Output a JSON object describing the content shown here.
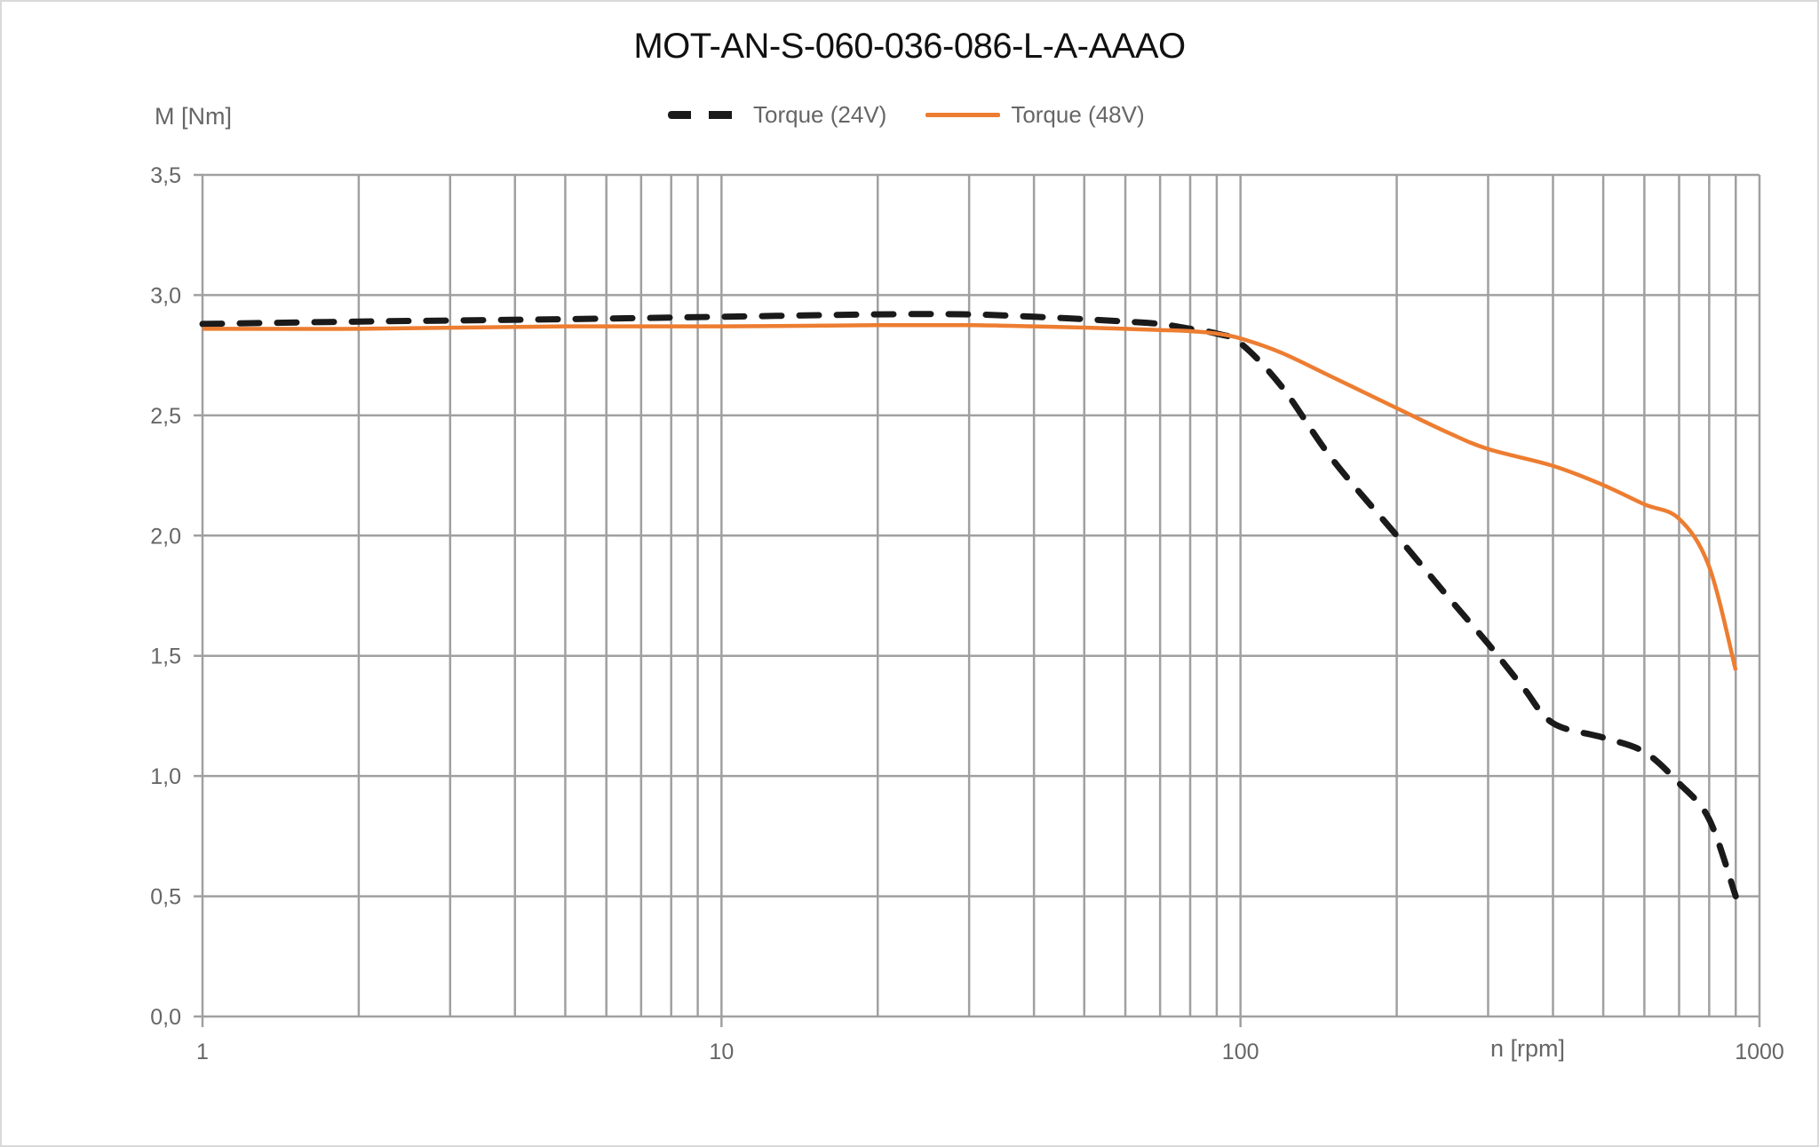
{
  "chart_data": {
    "type": "line",
    "title": "MOT-AN-S-060-036-086-L-A-AAAO",
    "xlabel": "n [rpm]",
    "ylabel": "M [Nm]",
    "xscale": "log",
    "xlim": [
      1,
      1000
    ],
    "ylim": [
      0,
      3.5
    ],
    "grid": true,
    "legend_position": "top",
    "x_ticks": [
      "1",
      "10",
      "100",
      "1000"
    ],
    "y_ticks": [
      "0,0",
      "0,5",
      "1,0",
      "1,5",
      "2,0",
      "2,5",
      "3,0",
      "3,5"
    ],
    "series": [
      {
        "name": "Torque (24V)",
        "color": "#1a1a1a",
        "style": "dashed",
        "x": [
          1,
          2,
          5,
          10,
          20,
          30,
          40,
          50,
          60,
          70,
          80,
          90,
          100,
          120,
          150,
          200,
          250,
          300,
          350,
          400,
          500,
          600,
          700,
          800,
          900
        ],
        "y": [
          2.88,
          2.89,
          2.9,
          2.91,
          2.92,
          2.92,
          2.91,
          2.9,
          2.89,
          2.88,
          2.86,
          2.84,
          2.8,
          2.62,
          2.32,
          2.0,
          1.75,
          1.55,
          1.37,
          1.22,
          1.16,
          1.1,
          0.97,
          0.82,
          0.5
        ]
      },
      {
        "name": "Torque (48V)",
        "color": "#ed7d31",
        "style": "solid",
        "x": [
          1,
          2,
          5,
          10,
          20,
          30,
          40,
          50,
          60,
          70,
          80,
          90,
          100,
          120,
          150,
          200,
          250,
          300,
          400,
          500,
          600,
          700,
          800,
          900
        ],
        "y": [
          2.86,
          2.86,
          2.87,
          2.87,
          2.875,
          2.875,
          2.87,
          2.865,
          2.86,
          2.855,
          2.85,
          2.84,
          2.82,
          2.76,
          2.66,
          2.53,
          2.43,
          2.36,
          2.29,
          2.21,
          2.13,
          2.07,
          1.87,
          1.44
        ]
      }
    ]
  }
}
